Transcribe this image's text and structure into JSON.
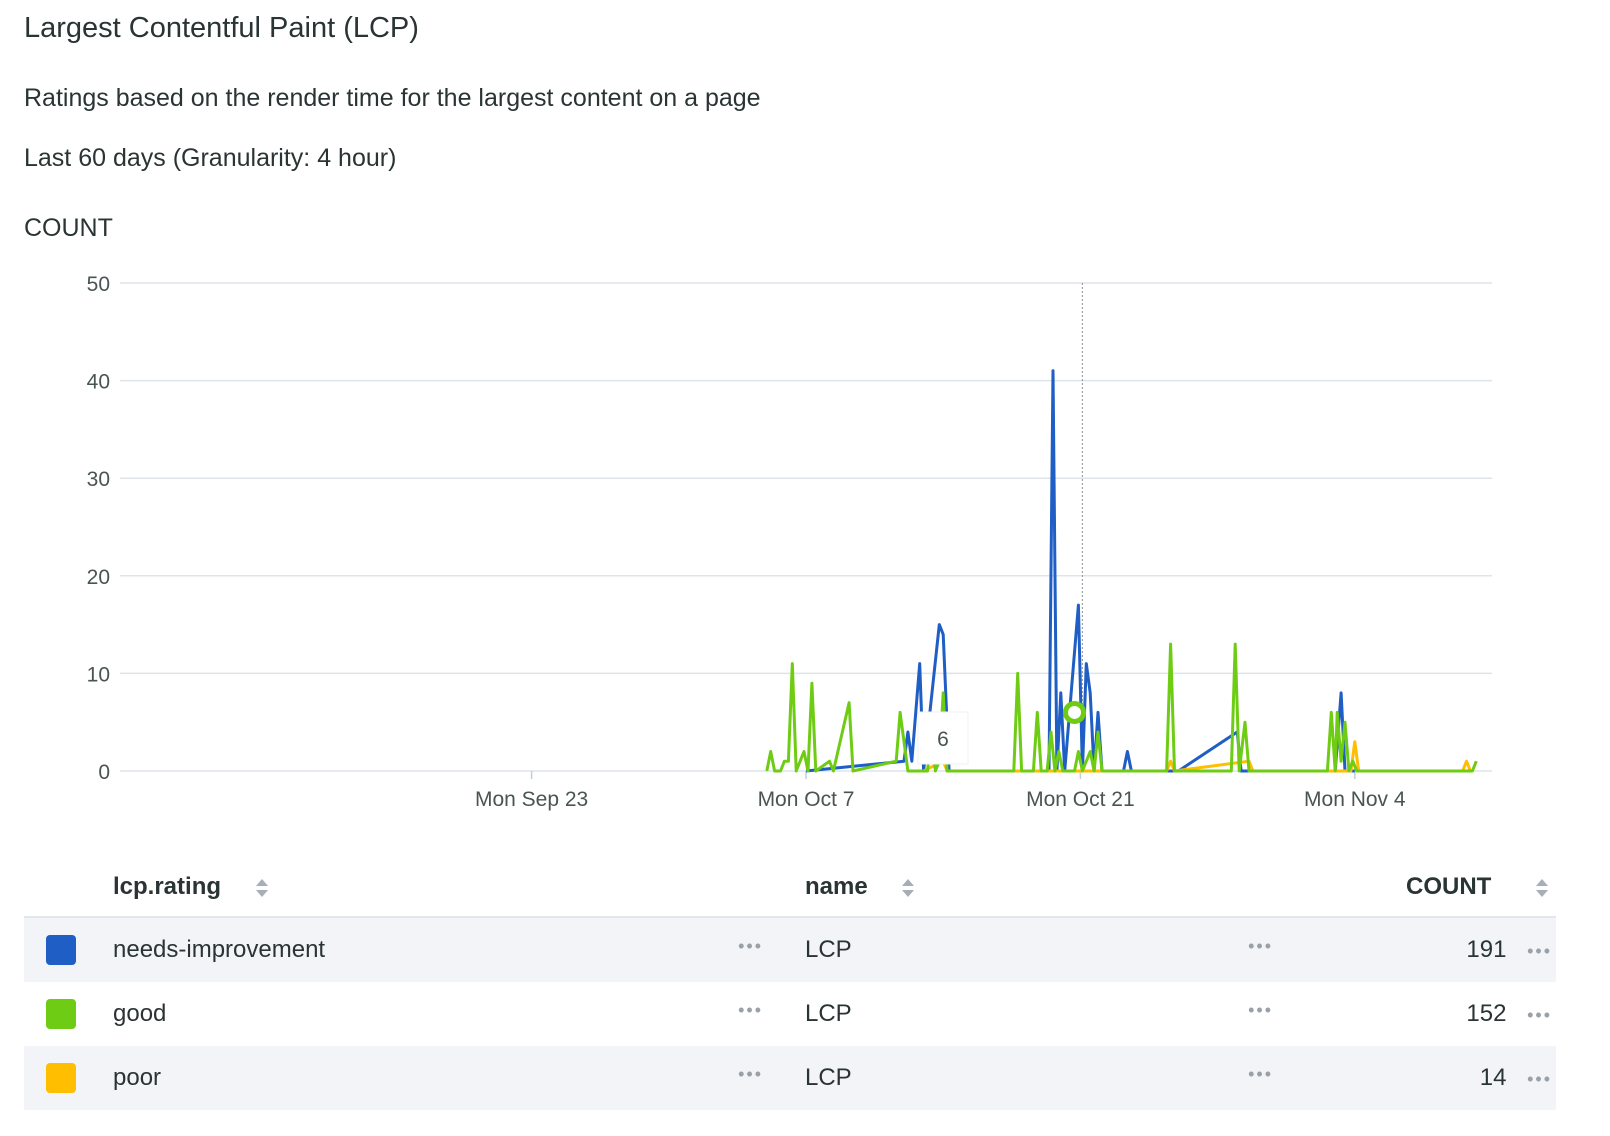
{
  "header": {
    "title": "Largest Contentful Paint (LCP)",
    "subtitle": "Ratings based on the render time for the largest content on a page",
    "range": "Last 60 days (Granularity: 4 hour)"
  },
  "tooltip": {
    "value": "6"
  },
  "chart_data": {
    "type": "line",
    "ylabel": "COUNT",
    "ylim": [
      0,
      50
    ],
    "yticks": [
      0,
      10,
      20,
      30,
      40,
      50
    ],
    "xticks": [
      "Mon Sep 23",
      "Mon Oct 7",
      "Mon Oct 21",
      "Mon Nov 4"
    ],
    "grid": true,
    "series": [
      {
        "name": "needs-improvement",
        "color": "#1f5ec4",
        "points": [
          [
            35,
            0
          ],
          [
            40,
            1
          ],
          [
            40.2,
            4
          ],
          [
            40.4,
            1
          ],
          [
            40.8,
            11
          ],
          [
            41,
            0
          ],
          [
            41.8,
            15
          ],
          [
            42,
            14
          ],
          [
            42.3,
            0
          ],
          [
            47.4,
            0
          ],
          [
            47.6,
            41
          ],
          [
            47.8,
            0
          ],
          [
            48,
            8
          ],
          [
            48.2,
            0
          ],
          [
            48.9,
            17
          ],
          [
            49.1,
            0
          ],
          [
            49.3,
            11
          ],
          [
            49.5,
            8
          ],
          [
            49.7,
            0
          ],
          [
            49.9,
            6
          ],
          [
            50.1,
            0
          ],
          [
            51.2,
            0
          ],
          [
            51.4,
            2
          ],
          [
            51.6,
            0
          ],
          [
            54,
            0
          ],
          [
            57,
            4
          ],
          [
            57.2,
            0
          ],
          [
            62,
            0
          ],
          [
            62.3,
            8
          ],
          [
            62.5,
            0
          ],
          [
            63,
            0
          ]
        ]
      },
      {
        "name": "good",
        "color": "#6fcc14",
        "points": [
          [
            33,
            0
          ],
          [
            33.2,
            2
          ],
          [
            33.4,
            0
          ],
          [
            33.7,
            0
          ],
          [
            33.9,
            1
          ],
          [
            34.1,
            1
          ],
          [
            34.3,
            11
          ],
          [
            34.5,
            0
          ],
          [
            34.9,
            2
          ],
          [
            35.1,
            0
          ],
          [
            35.3,
            9
          ],
          [
            35.5,
            0
          ],
          [
            36.2,
            1
          ],
          [
            36.4,
            0
          ],
          [
            37.2,
            7
          ],
          [
            37.4,
            0
          ],
          [
            39.6,
            1
          ],
          [
            39.8,
            6
          ],
          [
            40,
            3
          ],
          [
            40.2,
            0
          ],
          [
            41.2,
            0
          ],
          [
            41.4,
            4
          ],
          [
            41.6,
            0
          ],
          [
            41.8,
            1
          ],
          [
            42,
            8
          ],
          [
            42.2,
            0
          ],
          [
            45.6,
            0
          ],
          [
            45.8,
            10
          ],
          [
            46,
            0
          ],
          [
            46.6,
            0
          ],
          [
            46.8,
            6
          ],
          [
            47,
            0
          ],
          [
            47.3,
            0
          ],
          [
            47.5,
            4
          ],
          [
            47.7,
            0
          ],
          [
            47.9,
            2
          ],
          [
            48.1,
            0
          ],
          [
            48.7,
            0
          ],
          [
            48.9,
            2
          ],
          [
            49.1,
            0
          ],
          [
            49.5,
            2
          ],
          [
            49.7,
            0
          ],
          [
            49.9,
            4
          ],
          [
            50.1,
            0
          ],
          [
            53.4,
            0
          ],
          [
            53.6,
            13
          ],
          [
            53.8,
            0
          ],
          [
            56.7,
            0
          ],
          [
            56.9,
            13
          ],
          [
            57.1,
            0
          ],
          [
            57.4,
            5
          ],
          [
            57.6,
            0
          ],
          [
            61.6,
            0
          ],
          [
            61.8,
            6
          ],
          [
            62,
            0
          ],
          [
            62.1,
            6
          ],
          [
            62.3,
            1
          ],
          [
            62.5,
            5
          ],
          [
            62.7,
            0
          ],
          [
            62.9,
            1
          ],
          [
            63.1,
            0
          ],
          [
            69,
            0
          ],
          [
            69.2,
            1
          ]
        ]
      },
      {
        "name": "poor",
        "color": "#ffbe00",
        "points": [
          [
            41,
            0
          ],
          [
            42,
            1
          ],
          [
            42.2,
            0
          ],
          [
            53.4,
            0
          ],
          [
            53.6,
            1
          ],
          [
            53.8,
            0
          ],
          [
            57.6,
            1
          ],
          [
            57.8,
            0
          ],
          [
            62.8,
            0
          ],
          [
            63,
            3
          ],
          [
            63.2,
            0
          ],
          [
            68.5,
            0
          ],
          [
            68.7,
            1
          ],
          [
            68.9,
            0
          ]
        ]
      }
    ],
    "table": {
      "columns": [
        "lcp.rating",
        "name",
        "COUNT"
      ],
      "rows": [
        {
          "rating": "needs-improvement",
          "name": "LCP",
          "count": "191",
          "color": "#1f5ec4"
        },
        {
          "rating": "good",
          "name": "LCP",
          "count": "152",
          "color": "#6fcc14"
        },
        {
          "rating": "poor",
          "name": "LCP",
          "count": "14",
          "color": "#ffbe00"
        }
      ]
    }
  }
}
